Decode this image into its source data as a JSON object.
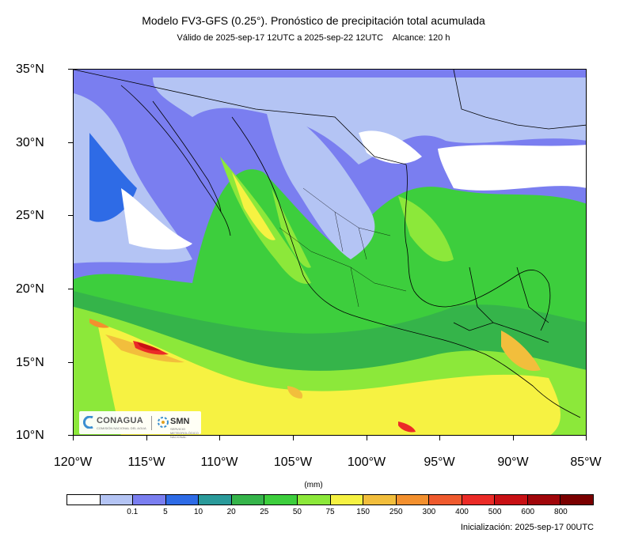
{
  "title": "Modelo FV3-GFS (0.25°). Pronóstico de precipitación total acumulada",
  "subtitle_valid": "Válido de 2025-sep-17 12UTC a 2025-sep-22 12UTC",
  "subtitle_range": "Alcance: 120 h",
  "map": {
    "lat_labels": [
      "35°N",
      "30°N",
      "25°N",
      "20°N",
      "15°N",
      "10°N"
    ],
    "lon_labels": [
      "120°W",
      "115°W",
      "110°W",
      "105°W",
      "100°W",
      "95°W",
      "90°W",
      "85°W"
    ],
    "lat_range": [
      10,
      35
    ],
    "lon_range": [
      -120,
      -85
    ]
  },
  "colorbar": {
    "unit": "(mm)",
    "colors": [
      "#ffffff",
      "#b4c4f4",
      "#7a7ef0",
      "#2e6be6",
      "#2a9a9a",
      "#35b44a",
      "#3dce3d",
      "#8ce83a",
      "#f6f242",
      "#f2be3c",
      "#f3902e",
      "#ef5a2e",
      "#eb2b27",
      "#c81014",
      "#a0060a",
      "#7a0000"
    ],
    "labels": [
      "0.1",
      "5",
      "10",
      "20",
      "25",
      "50",
      "75",
      "150",
      "250",
      "300",
      "400",
      "500",
      "600",
      "800"
    ]
  },
  "initialization": "Inicialización: 2025-sep-17 00UTC",
  "logos": {
    "conagua": "CONAGUA",
    "conagua_sub": "COMISIÓN NACIONAL DEL AGUA",
    "smn": "SMN",
    "smn_sub": "SERVICIO METEOROLÓGICO NACIONAL"
  }
}
